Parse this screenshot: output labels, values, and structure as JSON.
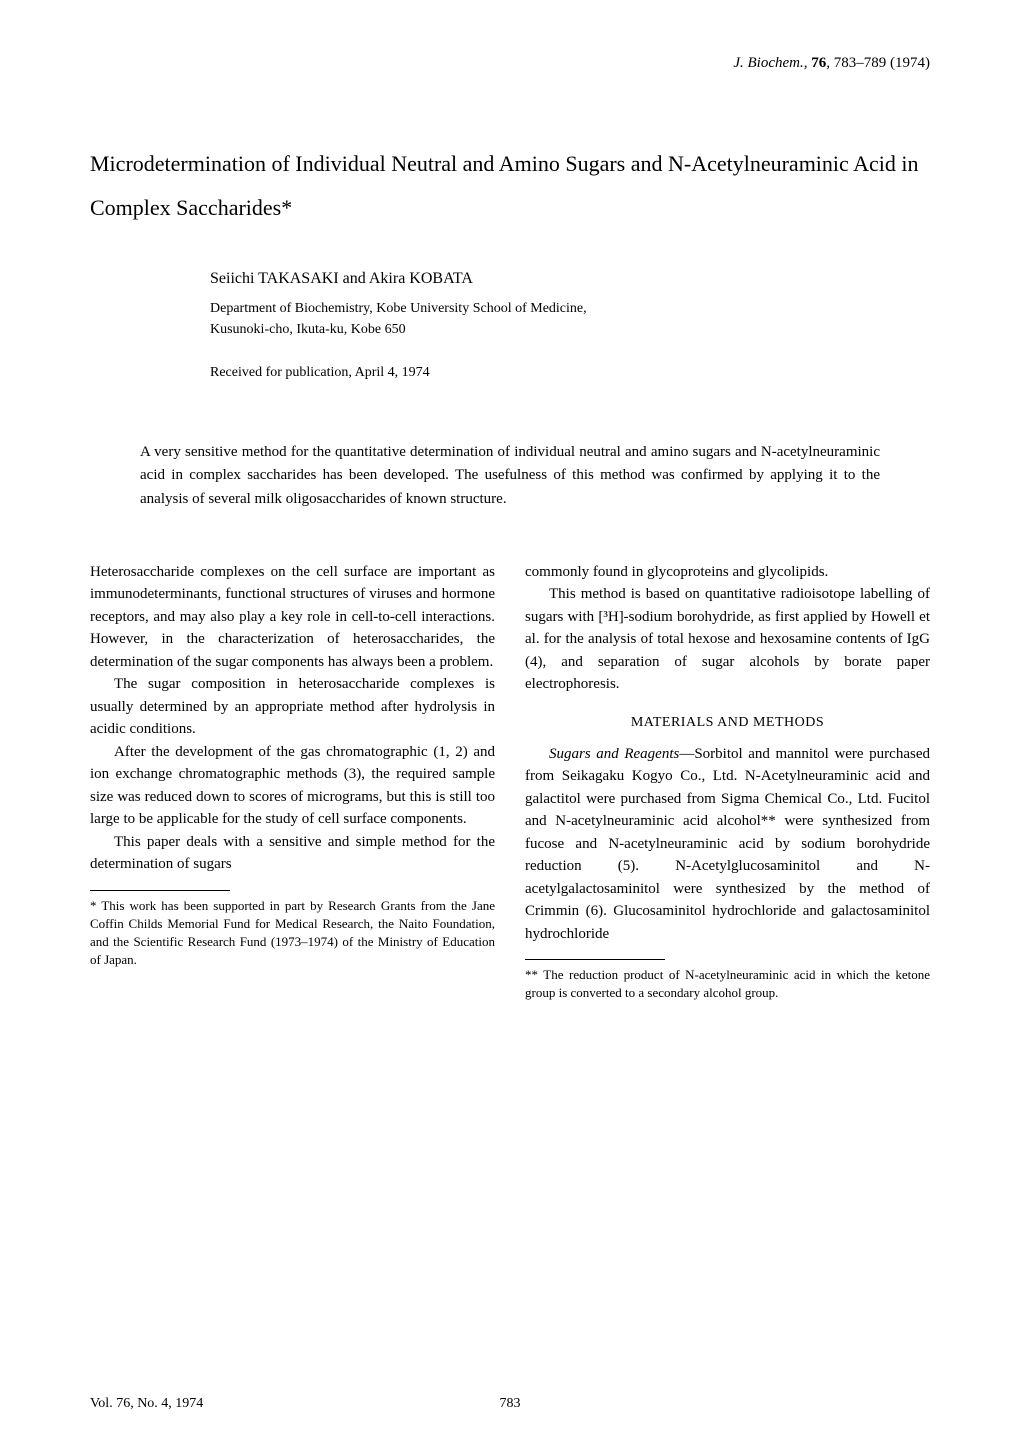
{
  "header": {
    "journal": "J. Biochem.",
    "volume": "76",
    "pages": "783–789",
    "year": "(1974)"
  },
  "title": "Microdetermination of Individual Neutral and Amino Sugars and N-Acetylneuraminic Acid in Complex Saccharides*",
  "authors": "Seiichi TAKASAKI and Akira KOBATA",
  "affiliation_line1": "Department of Biochemistry, Kobe University School of Medicine,",
  "affiliation_line2": "Kusunoki-cho, Ikuta-ku, Kobe 650",
  "received": "Received for publication, April 4, 1974",
  "abstract": "A very sensitive method for the quantitative determination of individual neutral and amino sugars and N-acetylneuraminic acid in complex saccharides has been developed. The usefulness of this method was confirmed by applying it to the analysis of several milk oligosaccharides of known structure.",
  "left_column": {
    "p1": "Heterosaccharide complexes on the cell surface are important as immunodeterminants, functional structures of viruses and hormone receptors, and may also play a key role in cell-to-cell interactions. However, in the characterization of heterosaccharides, the determination of the sugar components has always been a problem.",
    "p2": "The sugar composition in heterosaccharide complexes is usually determined by an appropriate method after hydrolysis in acidic conditions.",
    "p3": "After the development of the gas chromatographic (1, 2) and ion exchange chromatographic methods (3), the required sample size was reduced down to scores of micrograms, but this is still too large to be applicable for the study of cell surface components.",
    "p4": "This paper deals with a sensitive and simple method for the determination of sugars",
    "footnote": "* This work has been supported in part by Research Grants from the Jane Coffin Childs Memorial Fund for Medical Research, the Naito Foundation, and the Scientific Research Fund (1973–1974) of the Ministry of Education of Japan."
  },
  "right_column": {
    "p1": "commonly found in glycoproteins and glycolipids.",
    "p2": "This method is based on quantitative radioisotope labelling of sugars with [³H]-sodium borohydride, as first applied by Howell et al. for the analysis of total hexose and hexosamine contents of IgG (4), and separation of sugar alcohols by borate paper electrophoresis.",
    "section_heading": "MATERIALS AND METHODS",
    "p3_run1": "Sugars and Reagents",
    "p3_run2": "—Sorbitol and mannitol were purchased from Seikagaku Kogyo Co., Ltd. N-Acetylneuraminic acid and galactitol were purchased from Sigma Chemical Co., Ltd. Fucitol and N-acetylneuraminic acid alcohol** were synthesized from fucose and N-acetylneuraminic acid by sodium borohydride reduction (5). N-Acetylglucosaminitol and N-acetylgalactosaminitol were synthesized by the method of Crimmin (6). Glucosaminitol hydrochloride and galactosaminitol hydrochloride",
    "footnote": "** The reduction product of N-acetylneuraminic acid in which the ketone group is converted to a secondary alcohol group."
  },
  "footer": {
    "left": "Vol. 76, No. 4, 1974",
    "page": "783"
  }
}
